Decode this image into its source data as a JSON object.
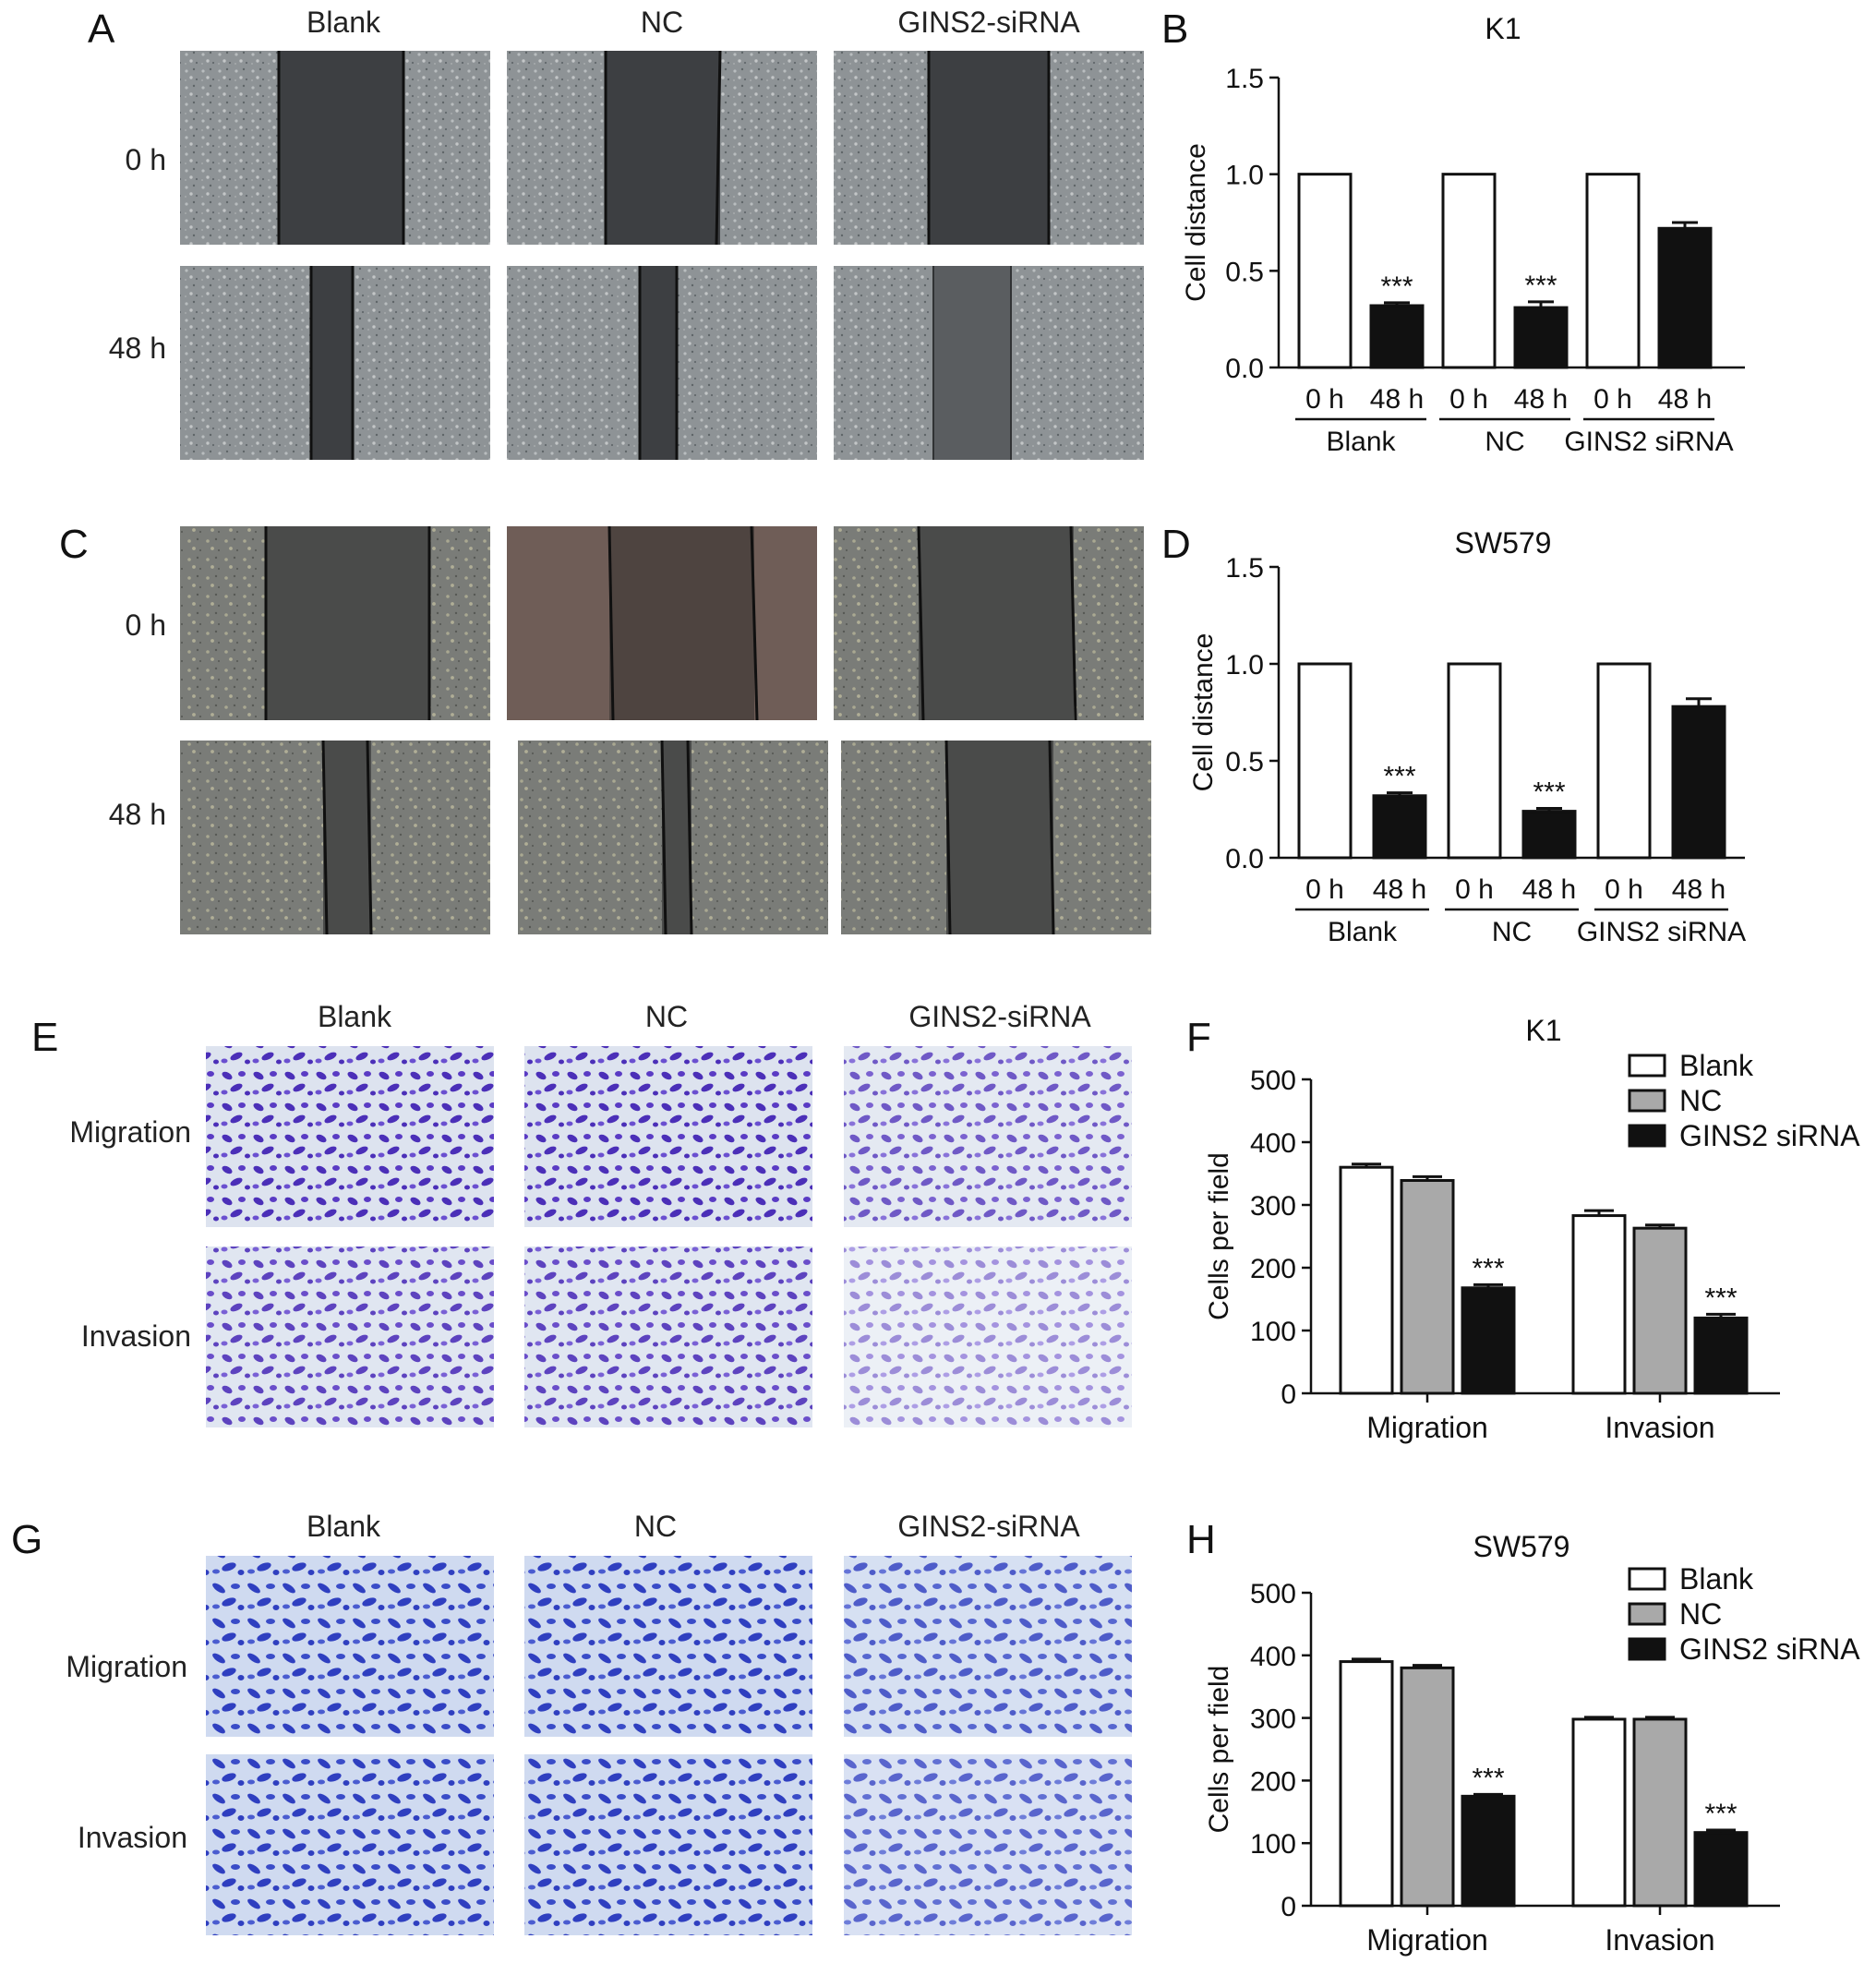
{
  "panel_letters": [
    "A",
    "B",
    "C",
    "D",
    "E",
    "F",
    "G",
    "H"
  ],
  "scratch_panels": {
    "column_headers": [
      "Blank",
      "NC",
      "GINS2-siRNA"
    ],
    "row_headers": [
      "0 h",
      "48 h"
    ],
    "colors": {
      "cells": "#8e9396",
      "gap": "#3d3f42",
      "line": "#101010"
    }
  },
  "transwell_panels": {
    "column_headers": [
      "Blank",
      "NC",
      "GINS2-siRNA"
    ],
    "row_headers": [
      "Migration",
      "Invasion"
    ],
    "colors": {
      "background_E": "#dde3ef",
      "stain_E": "#4b2fb8",
      "background_G": "#cfdaf0",
      "stain_G": "#2f3fc0"
    }
  },
  "chart_data": [
    {
      "type": "bar",
      "panel": "B",
      "title": "K1",
      "ylabel": "Cell distance",
      "ylim": [
        0,
        1.5
      ],
      "yticks": [
        "0.0",
        "0.5",
        "1.0",
        "1.5"
      ],
      "groups": [
        "Blank",
        "NC",
        "GINS2 siRNA"
      ],
      "categories": [
        "0 h",
        "48 h",
        "0 h",
        "48 h",
        "0 h",
        "48 h"
      ],
      "values": [
        1.0,
        0.32,
        1.0,
        0.31,
        1.0,
        0.72
      ],
      "errors": [
        0,
        0.015,
        0,
        0.03,
        0,
        0.03
      ],
      "fills": [
        "#ffffff",
        "#111111",
        "#ffffff",
        "#111111",
        "#ffffff",
        "#111111"
      ],
      "significance": [
        "",
        "***",
        "",
        "***",
        "",
        ""
      ]
    },
    {
      "type": "bar",
      "panel": "D",
      "title": "SW579",
      "ylabel": "Cell distance",
      "ylim": [
        0,
        1.5
      ],
      "yticks": [
        "0.0",
        "0.5",
        "1.0",
        "1.5"
      ],
      "groups": [
        "Blank",
        "NC",
        "GINS2 siRNA"
      ],
      "categories": [
        "0 h",
        "48 h",
        "0 h",
        "48 h",
        "0 h",
        "48 h"
      ],
      "values": [
        1.0,
        0.32,
        1.0,
        0.24,
        1.0,
        0.78
      ],
      "errors": [
        0,
        0.015,
        0,
        0.015,
        0,
        0.04
      ],
      "fills": [
        "#ffffff",
        "#111111",
        "#ffffff",
        "#111111",
        "#ffffff",
        "#111111"
      ],
      "significance": [
        "",
        "***",
        "",
        "***",
        "",
        ""
      ]
    },
    {
      "type": "bar",
      "panel": "F",
      "title": "K1",
      "ylabel": "Cells per field",
      "ylim": [
        0,
        500
      ],
      "yticks": [
        "0",
        "100",
        "200",
        "300",
        "400",
        "500"
      ],
      "categories": [
        "Migration",
        "Invasion"
      ],
      "series": [
        {
          "name": "Blank",
          "color": "#ffffff",
          "values": [
            360,
            283
          ],
          "errors": [
            5,
            8
          ]
        },
        {
          "name": "NC",
          "color": "#a9a9a9",
          "values": [
            339,
            263
          ],
          "errors": [
            6,
            5
          ]
        },
        {
          "name": "GINS2 siRNA",
          "color": "#111111",
          "values": [
            168,
            120
          ],
          "errors": [
            5,
            6
          ]
        }
      ],
      "significance": [
        [
          "",
          "",
          "***"
        ],
        [
          "",
          "",
          "***"
        ]
      ],
      "legend": "top-right"
    },
    {
      "type": "bar",
      "panel": "H",
      "title": "SW579",
      "ylabel": "Cells per field",
      "ylim": [
        0,
        500
      ],
      "yticks": [
        "0",
        "100",
        "200",
        "300",
        "400",
        "500"
      ],
      "categories": [
        "Migration",
        "Invasion"
      ],
      "series": [
        {
          "name": "Blank",
          "color": "#ffffff",
          "values": [
            390,
            298
          ],
          "errors": [
            4,
            3
          ]
        },
        {
          "name": "NC",
          "color": "#a9a9a9",
          "values": [
            380,
            298
          ],
          "errors": [
            4,
            3
          ]
        },
        {
          "name": "GINS2 siRNA",
          "color": "#111111",
          "values": [
            175,
            117
          ],
          "errors": [
            3,
            4
          ]
        }
      ],
      "significance": [
        [
          "",
          "",
          "***"
        ],
        [
          "",
          "",
          "***"
        ]
      ],
      "legend": "top-right"
    }
  ]
}
